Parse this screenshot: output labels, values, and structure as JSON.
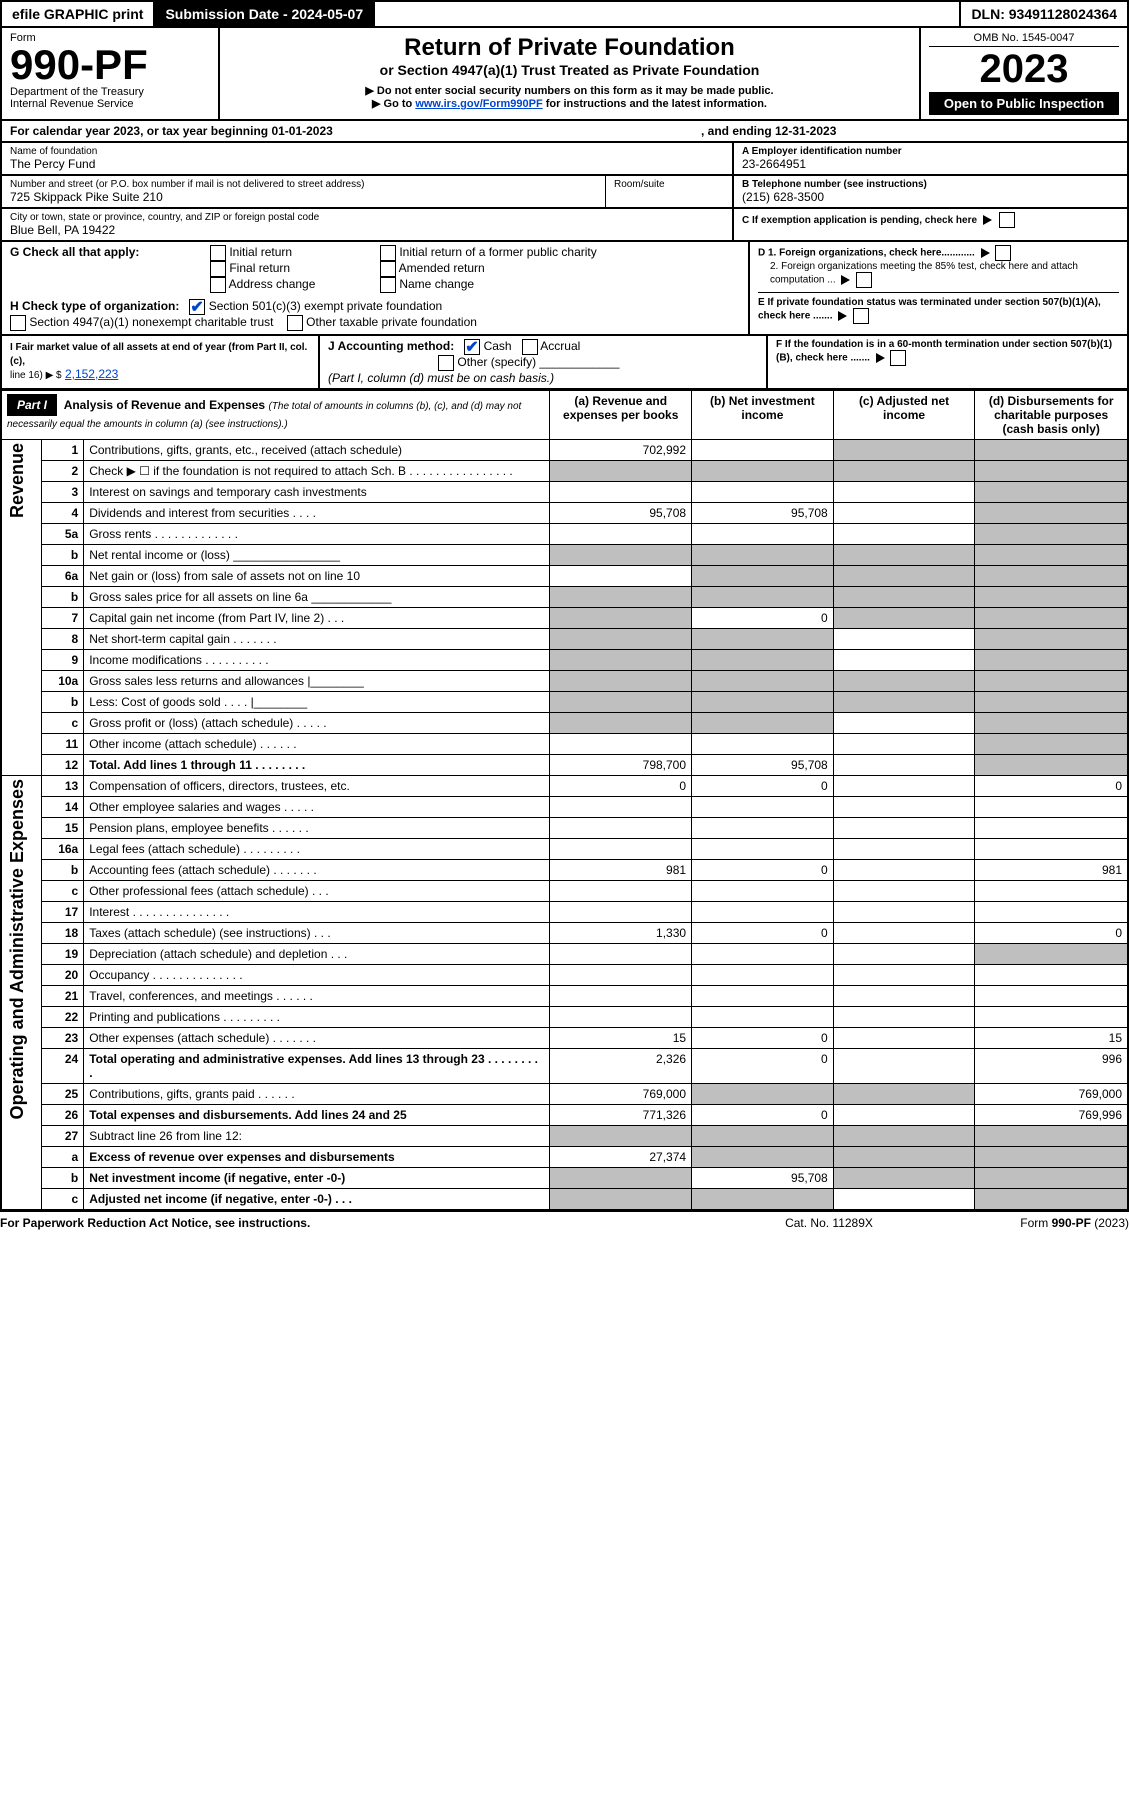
{
  "topbar": {
    "efile": "efile GRAPHIC print",
    "sub_label": "Submission Date - 2024-05-07",
    "dln": "DLN: 93491128024364"
  },
  "header": {
    "form_word": "Form",
    "form_no": "990-PF",
    "dept": "Department of the Treasury",
    "irs": "Internal Revenue Service",
    "title": "Return of Private Foundation",
    "subtitle": "or Section 4947(a)(1) Trust Treated as Private Foundation",
    "note1": "▶ Do not enter social security numbers on this form as it may be made public.",
    "note2_pre": "▶ Go to ",
    "note2_link": "www.irs.gov/Form990PF",
    "note2_post": " for instructions and the latest information.",
    "omb": "OMB No. 1545-0047",
    "year": "2023",
    "open": "Open to Public Inspection"
  },
  "cal": {
    "line": "For calendar year 2023, or tax year beginning 01-01-2023",
    "mid": ",  and ending 12-31-2023"
  },
  "id": {
    "name_lbl": "Name of foundation",
    "name": "The Percy Fund",
    "addr_lbl": "Number and street (or P.O. box number if mail is not delivered to street address)",
    "addr": "725 Skippack Pike Suite 210",
    "room_lbl": "Room/suite",
    "city_lbl": "City or town, state or province, country, and ZIP or foreign postal code",
    "city": "Blue Bell, PA  19422",
    "a_lbl": "A Employer identification number",
    "a_val": "23-2664951",
    "b_lbl": "B Telephone number (see instructions)",
    "b_val": "(215) 628-3500",
    "c_lbl": "C If exemption application is pending, check here"
  },
  "g": {
    "lbl": "G Check all that apply:",
    "opts": [
      "Initial return",
      "Final return",
      "Address change",
      "Initial return of a former public charity",
      "Amended return",
      "Name change"
    ]
  },
  "h": {
    "lbl": "H Check type of organization:",
    "o1": "Section 501(c)(3) exempt private foundation",
    "o2": "Section 4947(a)(1) nonexempt charitable trust",
    "o3": "Other taxable private foundation"
  },
  "d": {
    "d1": "D 1. Foreign organizations, check here............",
    "d2": "2. Foreign organizations meeting the 85% test, check here and attach computation ..."
  },
  "e": "E  If private foundation status was terminated under section 507(b)(1)(A), check here .......",
  "f": "F  If the foundation is in a 60-month termination under section 507(b)(1)(B), check here .......",
  "i": {
    "lbl": "I Fair market value of all assets at end of year (from Part II, col. (c),",
    "line16": "line 16) ▶ $",
    "val": "2,152,223"
  },
  "j": {
    "lbl": "J Accounting method:",
    "cash": "Cash",
    "accr": "Accrual",
    "other": "Other (specify)",
    "note": "(Part I, column (d) must be on cash basis.)"
  },
  "part1": {
    "title": "Part I",
    "heading": "Analysis of Revenue and Expenses",
    "sub": "(The total of amounts in columns (b), (c), and (d) may not necessarily equal the amounts in column (a) (see instructions).)",
    "col_a": "(a)  Revenue and expenses per books",
    "col_b": "(b)  Net investment income",
    "col_c": "(c)  Adjusted net income",
    "col_d": "(d)  Disbursements for charitable purposes (cash basis only)"
  },
  "sidebar": {
    "rev": "Revenue",
    "ope": "Operating and Administrative Expenses"
  },
  "rows": [
    {
      "n": "1",
      "d": "Contributions, gifts, grants, etc., received (attach schedule)",
      "a": "702,992",
      "b": "",
      "c": "s",
      "ds": "s"
    },
    {
      "n": "2",
      "d": "Check ▶ ☐ if the foundation is not required to attach Sch. B  .  .  .  .  .  .  .  .  .  .  .  .  .  .  .  .",
      "a": "s",
      "b": "s",
      "c": "s",
      "ds": "s"
    },
    {
      "n": "3",
      "d": "Interest on savings and temporary cash investments",
      "a": "",
      "b": "",
      "c": "",
      "ds": "s"
    },
    {
      "n": "4",
      "d": "Dividends and interest from securities  .  .  .  .",
      "a": "95,708",
      "b": "95,708",
      "c": "",
      "ds": "s"
    },
    {
      "n": "5a",
      "d": "Gross rents  .  .  .  .  .  .  .  .  .  .  .  .  .",
      "a": "",
      "b": "",
      "c": "",
      "ds": "s"
    },
    {
      "n": "b",
      "d": "Net rental income or (loss)  ________________",
      "a": "s",
      "b": "s",
      "c": "s",
      "ds": "s"
    },
    {
      "n": "6a",
      "d": "Net gain or (loss) from sale of assets not on line 10",
      "a": "",
      "b": "s",
      "c": "s",
      "ds": "s"
    },
    {
      "n": "b",
      "d": "Gross sales price for all assets on line 6a ____________",
      "a": "s",
      "b": "s",
      "c": "s",
      "ds": "s"
    },
    {
      "n": "7",
      "d": "Capital gain net income (from Part IV, line 2)  .  .  .",
      "a": "s",
      "b": "0",
      "c": "s",
      "ds": "s"
    },
    {
      "n": "8",
      "d": "Net short-term capital gain  .  .  .  .  .  .  .",
      "a": "s",
      "b": "s",
      "c": "",
      "ds": "s"
    },
    {
      "n": "9",
      "d": "Income modifications  .  .  .  .  .  .  .  .  .  .",
      "a": "s",
      "b": "s",
      "c": "",
      "ds": "s"
    },
    {
      "n": "10a",
      "d": "Gross sales less returns and allowances  |________",
      "a": "s",
      "b": "s",
      "c": "s",
      "ds": "s"
    },
    {
      "n": "b",
      "d": "Less: Cost of goods sold  .  .  .  .  |________",
      "a": "s",
      "b": "s",
      "c": "s",
      "ds": "s"
    },
    {
      "n": "c",
      "d": "Gross profit or (loss) (attach schedule)  .  .  .  .  .",
      "a": "s",
      "b": "s",
      "c": "",
      "ds": "s"
    },
    {
      "n": "11",
      "d": "Other income (attach schedule)  .  .  .  .  .  .",
      "a": "",
      "b": "",
      "c": "",
      "ds": "s"
    },
    {
      "n": "12",
      "d": "Total. Add lines 1 through 11  .  .  .  .  .  .  .  .",
      "a": "798,700",
      "b": "95,708",
      "c": "",
      "ds": "s",
      "bold": true
    },
    {
      "n": "13",
      "d": "Compensation of officers, directors, trustees, etc.",
      "a": "0",
      "b": "0",
      "c": "",
      "ds": "0"
    },
    {
      "n": "14",
      "d": "Other employee salaries and wages  .  .  .  .  .",
      "a": "",
      "b": "",
      "c": "",
      "ds": ""
    },
    {
      "n": "15",
      "d": "Pension plans, employee benefits  .  .  .  .  .  .",
      "a": "",
      "b": "",
      "c": "",
      "ds": ""
    },
    {
      "n": "16a",
      "d": "Legal fees (attach schedule) .  .  .  .  .  .  .  .  .",
      "a": "",
      "b": "",
      "c": "",
      "ds": ""
    },
    {
      "n": "b",
      "d": "Accounting fees (attach schedule) .  .  .  .  .  .  .",
      "a": "981",
      "b": "0",
      "c": "",
      "ds": "981"
    },
    {
      "n": "c",
      "d": "Other professional fees (attach schedule)  .  .  .",
      "a": "",
      "b": "",
      "c": "",
      "ds": ""
    },
    {
      "n": "17",
      "d": "Interest .  .  .  .  .  .  .  .  .  .  .  .  .  .  .",
      "a": "",
      "b": "",
      "c": "",
      "ds": ""
    },
    {
      "n": "18",
      "d": "Taxes (attach schedule) (see instructions)  .  .  .",
      "a": "1,330",
      "b": "0",
      "c": "",
      "ds": "0"
    },
    {
      "n": "19",
      "d": "Depreciation (attach schedule) and depletion  .  .  .",
      "a": "",
      "b": "",
      "c": "",
      "ds": "s"
    },
    {
      "n": "20",
      "d": "Occupancy .  .  .  .  .  .  .  .  .  .  .  .  .  .",
      "a": "",
      "b": "",
      "c": "",
      "ds": ""
    },
    {
      "n": "21",
      "d": "Travel, conferences, and meetings .  .  .  .  .  .",
      "a": "",
      "b": "",
      "c": "",
      "ds": ""
    },
    {
      "n": "22",
      "d": "Printing and publications .  .  .  .  .  .  .  .  .",
      "a": "",
      "b": "",
      "c": "",
      "ds": ""
    },
    {
      "n": "23",
      "d": "Other expenses (attach schedule) .  .  .  .  .  .  .",
      "a": "15",
      "b": "0",
      "c": "",
      "ds": "15"
    },
    {
      "n": "24",
      "d": "Total operating and administrative expenses. Add lines 13 through 23  .  .  .  .  .  .  .  .  .",
      "a": "2,326",
      "b": "0",
      "c": "",
      "ds": "996",
      "bold": true
    },
    {
      "n": "25",
      "d": "Contributions, gifts, grants paid  .  .  .  .  .  .",
      "a": "769,000",
      "b": "s",
      "c": "s",
      "ds": "769,000"
    },
    {
      "n": "26",
      "d": "Total expenses and disbursements. Add lines 24 and 25",
      "a": "771,326",
      "b": "0",
      "c": "",
      "ds": "769,996",
      "bold": true
    },
    {
      "n": "27",
      "d": "Subtract line 26 from line 12:",
      "a": "s",
      "b": "s",
      "c": "s",
      "ds": "s"
    },
    {
      "n": "a",
      "d": "Excess of revenue over expenses and disbursements",
      "a": "27,374",
      "b": "s",
      "c": "s",
      "ds": "s",
      "bold": true
    },
    {
      "n": "b",
      "d": "Net investment income (if negative, enter -0-)",
      "a": "s",
      "b": "95,708",
      "c": "s",
      "ds": "s",
      "bold": true
    },
    {
      "n": "c",
      "d": "Adjusted net income (if negative, enter -0-)  .  .  .",
      "a": "s",
      "b": "s",
      "c": "",
      "ds": "s",
      "bold": true
    }
  ],
  "footer": {
    "left": "For Paperwork Reduction Act Notice, see instructions.",
    "mid": "Cat. No. 11289X",
    "right": "Form 990-PF (2023)"
  }
}
